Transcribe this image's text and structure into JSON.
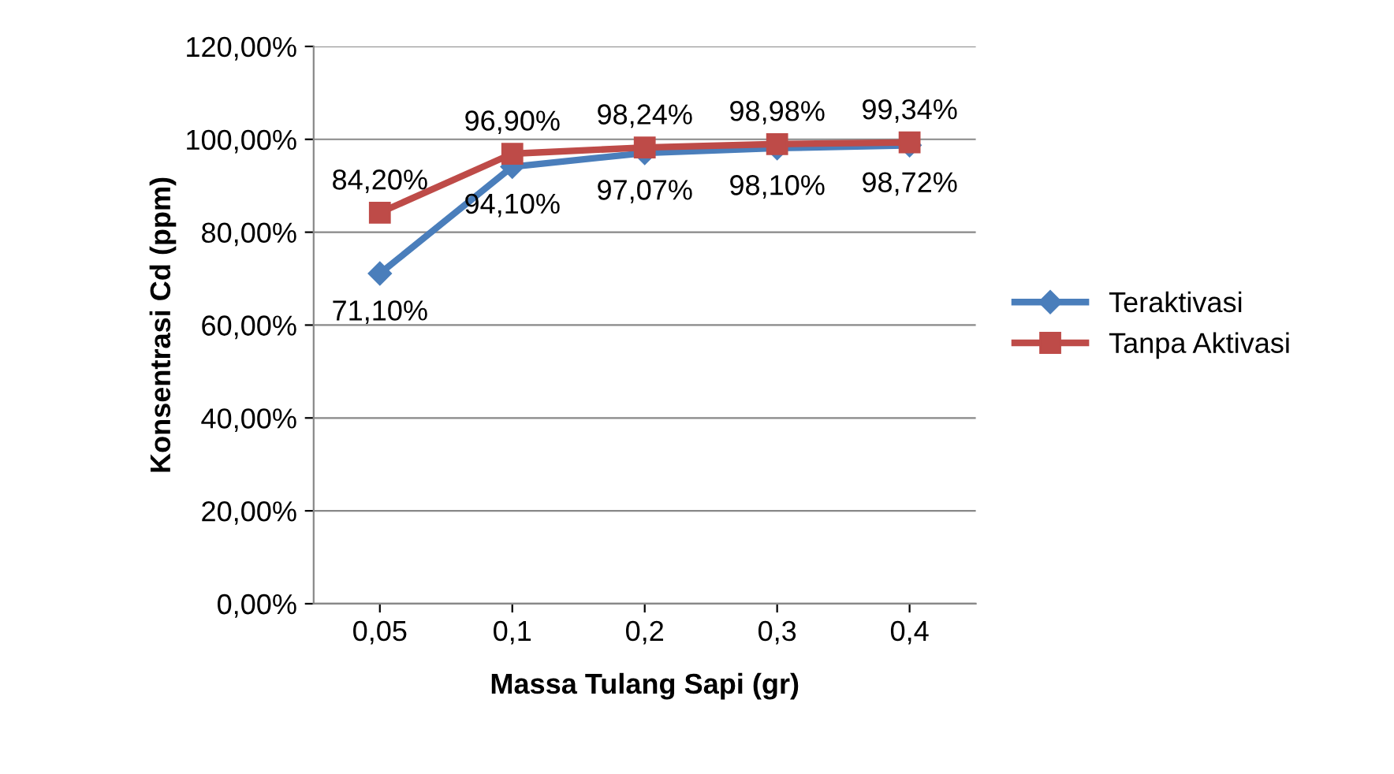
{
  "chart_data": {
    "type": "line",
    "xlabel": "Massa Tulang Sapi (gr)",
    "ylabel": "Konsentrasi Cd (ppm)",
    "categories": [
      "0,05",
      "0,1",
      "0,2",
      "0,3",
      "0,4"
    ],
    "series": [
      {
        "name": "Teraktivasi",
        "color": "#4a7ebb",
        "marker": "diamond",
        "values": [
          71.1,
          94.1,
          97.07,
          98.1,
          98.72
        ],
        "value_labels": [
          "71,10%",
          "94,10%",
          "97,07%",
          "98,10%",
          "98,72%"
        ]
      },
      {
        "name": "Tanpa Aktivasi",
        "color": "#be4b48",
        "marker": "square",
        "values": [
          84.2,
          96.9,
          98.24,
          98.98,
          99.34
        ],
        "value_labels": [
          "84,20%",
          "96,90%",
          "98,24%",
          "98,98%",
          "99,34%"
        ]
      }
    ],
    "ylim": [
      0,
      120
    ],
    "yticks": [
      {
        "value": 0,
        "label": "0,00%"
      },
      {
        "value": 20,
        "label": "20,00%"
      },
      {
        "value": 40,
        "label": "40,00%"
      },
      {
        "value": 60,
        "label": "60,00%"
      },
      {
        "value": 80,
        "label": "80,00%"
      },
      {
        "value": 100,
        "label": "100,00%"
      },
      {
        "value": 120,
        "label": "120,00%"
      }
    ],
    "grid": "y",
    "legend": "right",
    "line_style": "solid"
  }
}
